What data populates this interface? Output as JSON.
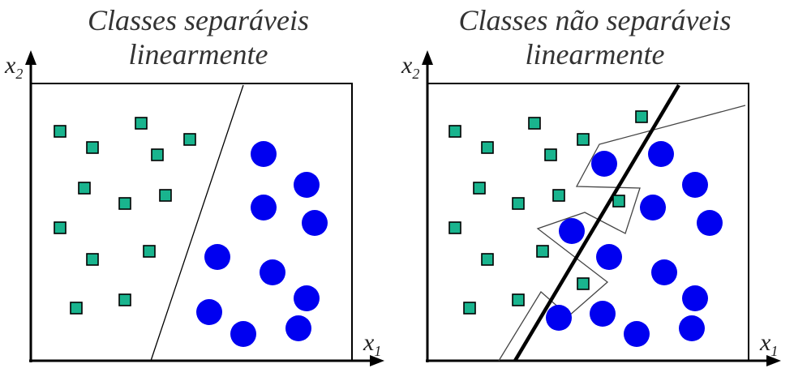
{
  "colors": {
    "square_fill": "#19b48e",
    "square_stroke": "#000000",
    "circle_fill": "#0000f0",
    "line": "#000000",
    "polygon": "#444444"
  },
  "axes": {
    "x_main": "x",
    "x_sub": "1",
    "y_main": "x",
    "y_sub": "2"
  },
  "panels": [
    {
      "id": "separable",
      "title_line1": "Classes separáveis",
      "title_line2": "linearmente",
      "squares": [
        [
          74,
          162
        ],
        [
          114,
          182
        ],
        [
          174,
          152
        ],
        [
          194,
          191
        ],
        [
          234,
          172
        ],
        [
          104,
          232
        ],
        [
          154,
          251
        ],
        [
          204,
          241
        ],
        [
          74,
          281
        ],
        [
          114,
          320
        ],
        [
          184,
          310
        ],
        [
          94,
          380
        ],
        [
          154,
          370
        ]
      ],
      "circles": [
        [
          325,
          190
        ],
        [
          378,
          228
        ],
        [
          325,
          256
        ],
        [
          388,
          275
        ],
        [
          268,
          317
        ],
        [
          336,
          336
        ],
        [
          378,
          368
        ],
        [
          258,
          385
        ],
        [
          300,
          412
        ],
        [
          368,
          405
        ]
      ],
      "boundary": [
        [
          300,
          105
        ],
        [
          186,
          445
        ]
      ]
    },
    {
      "id": "non-separable",
      "title_line1": "Classes não separáveis",
      "title_line2": "linearmente",
      "squares": [
        [
          72,
          162
        ],
        [
          112,
          182
        ],
        [
          170,
          152
        ],
        [
          190,
          191
        ],
        [
          230,
          172
        ],
        [
          102,
          232
        ],
        [
          150,
          251
        ],
        [
          200,
          241
        ],
        [
          72,
          281
        ],
        [
          112,
          320
        ],
        [
          180,
          310
        ],
        [
          90,
          380
        ],
        [
          150,
          370
        ],
        [
          302,
          144
        ],
        [
          274,
          248
        ],
        [
          230,
          350
        ]
      ],
      "circles": [
        [
          256,
          202
        ],
        [
          326,
          190
        ],
        [
          368,
          228
        ],
        [
          316,
          256
        ],
        [
          386,
          275
        ],
        [
          216,
          285
        ],
        [
          262,
          317
        ],
        [
          330,
          336
        ],
        [
          368,
          368
        ],
        [
          200,
          392
        ],
        [
          254,
          387
        ],
        [
          296,
          412
        ],
        [
          364,
          405
        ]
      ],
      "boundary": [
        [
          348,
          105
        ],
        [
          146,
          445
        ]
      ]
    }
  ]
}
